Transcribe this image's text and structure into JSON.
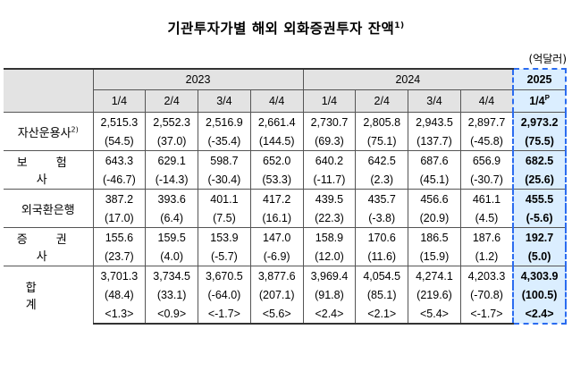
{
  "title": "기관투자가별 해외 외화증권투자 잔액",
  "title_note": "1)",
  "unit": "(억달러)",
  "years": [
    "2023",
    "2024",
    "2025"
  ],
  "quarters": [
    "1/4",
    "2/4",
    "3/4",
    "4/4",
    "1/4",
    "2/4",
    "3/4",
    "4/4",
    "1/4"
  ],
  "last_quarter_sup": "P",
  "rows": [
    {
      "label": "자산운용사",
      "label_note": "2)",
      "values": [
        "2,515.3",
        "2,552.3",
        "2,516.9",
        "2,661.4",
        "2,730.7",
        "2,805.8",
        "2,943.5",
        "2,897.7",
        "2,973.2"
      ],
      "changes": [
        "(54.5)",
        "(37.0)",
        "(-35.4)",
        "(144.5)",
        "(69.3)",
        "(75.1)",
        "(137.7)",
        "(-45.8)",
        "(75.5)"
      ]
    },
    {
      "label": "보 험 사",
      "label_note": "",
      "values": [
        "643.3",
        "629.1",
        "598.7",
        "652.0",
        "640.2",
        "642.5",
        "687.6",
        "656.9",
        "682.5"
      ],
      "changes": [
        "(-46.7)",
        "(-14.3)",
        "(-30.4)",
        "(53.3)",
        "(-11.7)",
        "(2.3)",
        "(45.1)",
        "(-30.7)",
        "(25.6)"
      ]
    },
    {
      "label": "외국환은행",
      "label_note": "",
      "values": [
        "387.2",
        "393.6",
        "401.1",
        "417.2",
        "439.5",
        "435.7",
        "456.6",
        "461.1",
        "455.5"
      ],
      "changes": [
        "(17.0)",
        "(6.4)",
        "(7.5)",
        "(16.1)",
        "(22.3)",
        "(-3.8)",
        "(20.9)",
        "(4.5)",
        "(-5.6)"
      ]
    },
    {
      "label": "증 권 사",
      "label_note": "",
      "values": [
        "155.6",
        "159.5",
        "153.9",
        "147.0",
        "158.9",
        "170.6",
        "186.5",
        "187.6",
        "192.7"
      ],
      "changes": [
        "(23.7)",
        "(4.0)",
        "(-5.7)",
        "(-6.9)",
        "(12.0)",
        "(11.6)",
        "(15.9)",
        "(1.2)",
        "(5.0)"
      ]
    }
  ],
  "total": {
    "label": "합 계",
    "values": [
      "3,701.3",
      "3,734.5",
      "3,670.5",
      "3,877.6",
      "3,969.4",
      "4,054.5",
      "4,274.1",
      "4,203.3",
      "4,303.9"
    ],
    "changes": [
      "(48.4)",
      "(33.1)",
      "(-64.0)",
      "(207.1)",
      "(91.8)",
      "(85.1)",
      "(219.6)",
      "(-70.8)",
      "(100.5)"
    ],
    "rates": [
      "<1.3>",
      "<0.9>",
      "<-1.7>",
      "<5.6>",
      "<2.4>",
      "<2.1>",
      "<5.4>",
      "<-1.7>",
      "<2.4>"
    ]
  }
}
